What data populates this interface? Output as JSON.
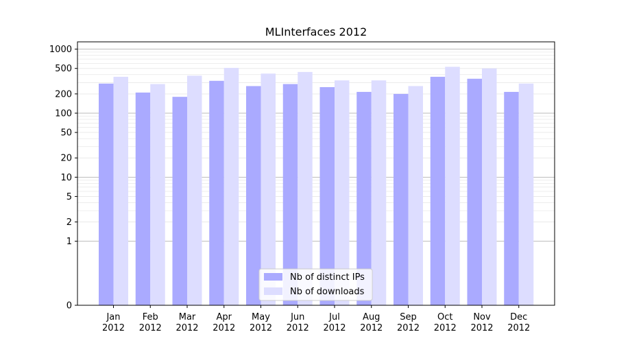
{
  "chart_data": {
    "type": "bar",
    "title": "MLInterfaces 2012",
    "xlabel": "",
    "ylabel": "",
    "y_scale": "symlog",
    "ylim": [
      0,
      1300
    ],
    "y_ticks": [
      0,
      1,
      2,
      5,
      10,
      20,
      50,
      100,
      200,
      500,
      1000
    ],
    "y_tick_labels": [
      "0",
      "1",
      "2",
      "5",
      "10",
      "20",
      "50",
      "100",
      "200",
      "500",
      "1000"
    ],
    "grid": true,
    "legend_position": "bottom-center",
    "categories": [
      "Jan\n2012",
      "Feb\n2012",
      "Mar\n2012",
      "Apr\n2012",
      "May\n2012",
      "Jun\n2012",
      "Jul\n2012",
      "Aug\n2012",
      "Sep\n2012",
      "Oct\n2012",
      "Nov\n2012",
      "Dec\n2012"
    ],
    "category_lines": [
      [
        "Jan",
        "2012"
      ],
      [
        "Feb",
        "2012"
      ],
      [
        "Mar",
        "2012"
      ],
      [
        "Apr",
        "2012"
      ],
      [
        "May",
        "2012"
      ],
      [
        "Jun",
        "2012"
      ],
      [
        "Jul",
        "2012"
      ],
      [
        "Aug",
        "2012"
      ],
      [
        "Sep",
        "2012"
      ],
      [
        "Oct",
        "2012"
      ],
      [
        "Nov",
        "2012"
      ],
      [
        "Dec",
        "2012"
      ]
    ],
    "series": [
      {
        "name": "Nb of distinct IPs",
        "color": "#aaaaff",
        "values": [
          290,
          210,
          180,
          320,
          265,
          285,
          255,
          215,
          200,
          370,
          345,
          215
        ]
      },
      {
        "name": "Nb of downloads",
        "color": "#ddddff",
        "values": [
          370,
          285,
          385,
          510,
          415,
          440,
          325,
          325,
          265,
          530,
          500,
          290
        ]
      }
    ]
  }
}
